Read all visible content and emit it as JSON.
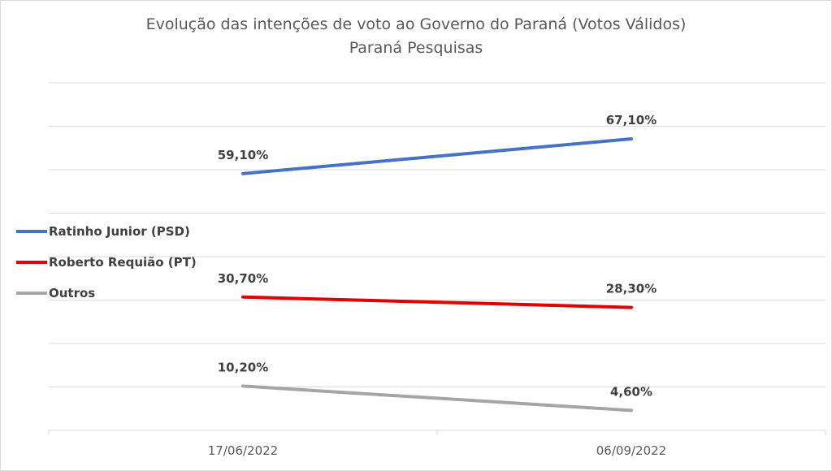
{
  "chart_data": {
    "type": "line",
    "title": "Evolução das intenções de voto ao Governo do Paraná (Votos Válidos)",
    "subtitle": "Paraná Pesquisas",
    "categories": [
      "17/06/2022",
      "06/09/2022"
    ],
    "ylim": [
      0,
      80
    ],
    "grid": true,
    "legend_position": "left",
    "series": [
      {
        "name": "Ratinho Junior (PSD)",
        "color": "#4472c4",
        "values": [
          59.1,
          67.1
        ],
        "labels": [
          "59,10%",
          "67,10%"
        ]
      },
      {
        "name": "Roberto Requião (PT)",
        "color": "#e00000",
        "values": [
          30.7,
          28.3
        ],
        "labels": [
          "30,70%",
          "28,30%"
        ]
      },
      {
        "name": "Outros",
        "color": "#a5a5a5",
        "values": [
          10.2,
          4.6
        ],
        "labels": [
          "10,20%",
          "4,60%"
        ]
      }
    ]
  }
}
